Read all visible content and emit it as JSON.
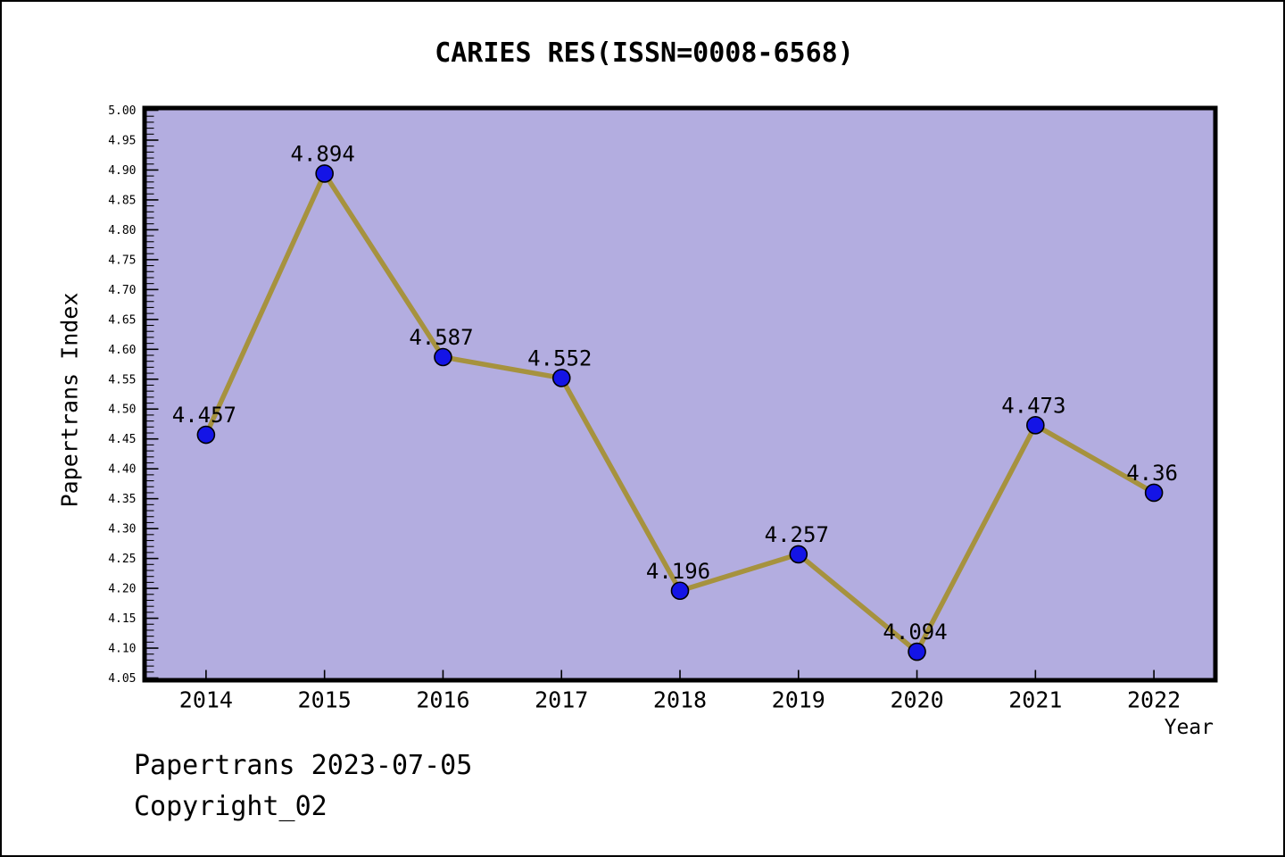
{
  "title": "CARIES RES(ISSN=0008-6568)",
  "footer": {
    "line1": "Papertrans 2023-07-05",
    "line2": "Copyright_02"
  },
  "chart_data": {
    "type": "line",
    "title": "CARIES RES(ISSN=0008-6568)",
    "xlabel": "Year",
    "ylabel": "Papertrans Index",
    "x": [
      2014,
      2015,
      2016,
      2017,
      2018,
      2019,
      2020,
      2021,
      2022
    ],
    "values": [
      4.457,
      4.894,
      4.587,
      4.552,
      4.196,
      4.257,
      4.094,
      4.473,
      4.36
    ],
    "point_labels": [
      "4.457",
      "4.894",
      "4.587",
      "4.552",
      "4.196",
      "4.257",
      "4.094",
      "4.473",
      "4.36"
    ],
    "xlim": [
      2013.5,
      2022.5
    ],
    "ylim": [
      4.05,
      5.0
    ],
    "y_major_step": 0.05,
    "y_minor_step": 0.01,
    "grid": false,
    "legend": "none",
    "colors": {
      "plot_bg": "#B3ADE0",
      "line": "#A6923E",
      "marker_fill": "#1414E6",
      "marker_edge": "#000000",
      "axis": "#000000",
      "text": "#000000"
    }
  }
}
